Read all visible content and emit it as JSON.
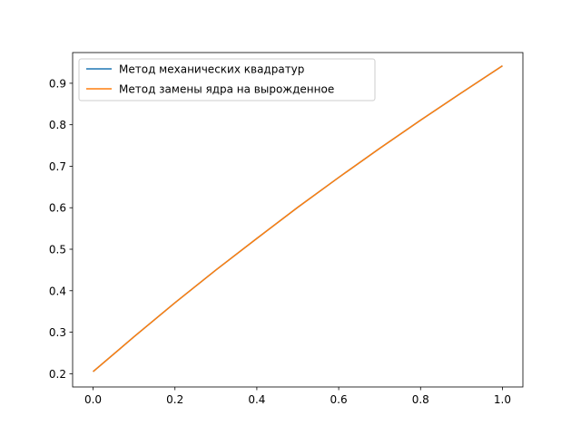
{
  "chart_data": {
    "type": "line",
    "title": "",
    "xlabel": "",
    "ylabel": "",
    "xlim": [
      -0.05,
      1.05
    ],
    "ylim": [
      0.168,
      0.974
    ],
    "x_ticks": [
      "0.0",
      "0.2",
      "0.4",
      "0.6",
      "0.8",
      "1.0"
    ],
    "y_ticks": [
      "0.2",
      "0.3",
      "0.4",
      "0.5",
      "0.6",
      "0.7",
      "0.8",
      "0.9"
    ],
    "grid": false,
    "legend_position": "upper-left",
    "x": [
      0.0,
      0.1,
      0.2,
      0.3,
      0.4,
      0.5,
      0.6,
      0.7,
      0.8,
      0.9,
      1.0
    ],
    "series": [
      {
        "name": "Метод механических квадратур",
        "color": "#1f77b4",
        "values": [
          0.205,
          0.289,
          0.371,
          0.45,
          0.526,
          0.601,
          0.673,
          0.743,
          0.811,
          0.877,
          0.942
        ]
      },
      {
        "name": "Метод замены ядра на вырожденное",
        "color": "#ff7f0e",
        "values": [
          0.205,
          0.289,
          0.371,
          0.45,
          0.526,
          0.601,
          0.673,
          0.743,
          0.811,
          0.877,
          0.942
        ]
      }
    ]
  }
}
